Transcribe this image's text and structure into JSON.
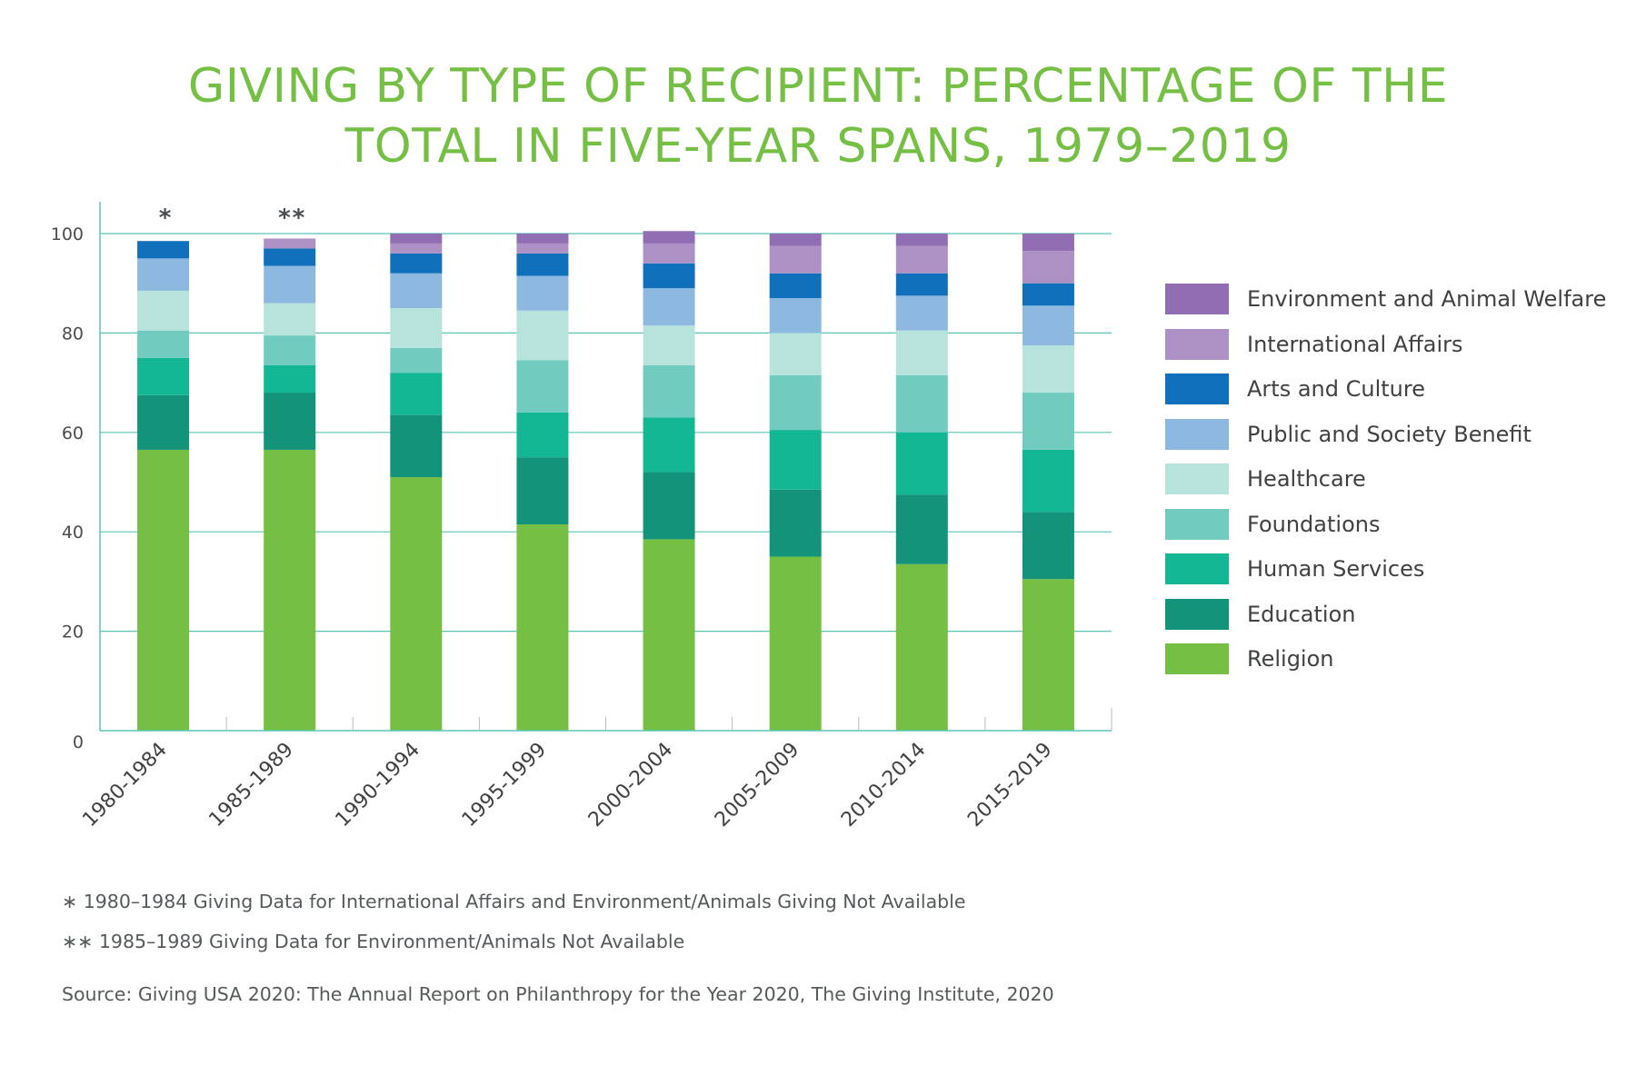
{
  "title": {
    "line1": "GIVING BY TYPE OF RECIPIENT: PERCENTAGE OF THE",
    "line2": "TOTAL IN FIVE-YEAR SPANS, 1979–2019"
  },
  "chart_data": {
    "type": "bar",
    "stacked": true,
    "categories": [
      "1980-1984",
      "1985-1989",
      "1990-1994",
      "1995-1999",
      "2000-2004",
      "2005-2009",
      "2010-2014",
      "2015-2019"
    ],
    "bar_marks": [
      "*",
      "**",
      "",
      "",
      "",
      "",
      "",
      ""
    ],
    "ylim": [
      0,
      100
    ],
    "yticks": [
      0,
      20,
      40,
      60,
      80,
      100
    ],
    "grid": true,
    "legend_position": "right",
    "series": [
      {
        "name": "Religion",
        "color": "#74bf44",
        "values": [
          56.5,
          56.5,
          51,
          41.5,
          38.5,
          35,
          33.5,
          30.5
        ]
      },
      {
        "name": "Education",
        "color": "#12937a",
        "values": [
          11,
          11.5,
          12.5,
          13.5,
          13.5,
          13.5,
          14,
          13.5
        ]
      },
      {
        "name": "Human Services",
        "color": "#14b794",
        "values": [
          7.5,
          5.5,
          8.5,
          9,
          11,
          12,
          12.5,
          12.5
        ]
      },
      {
        "name": "Foundations",
        "color": "#72cbbf",
        "values": [
          5.5,
          6,
          5,
          10.5,
          10.5,
          11,
          11.5,
          11.5
        ]
      },
      {
        "name": "Healthcare",
        "color": "#b8e3dd",
        "values": [
          8,
          6.5,
          8,
          10,
          8,
          8.5,
          9,
          9.5
        ]
      },
      {
        "name": "Public and Society Benefit",
        "color": "#8db9e0",
        "values": [
          6.5,
          7.5,
          7,
          7,
          7.5,
          7,
          7,
          8
        ]
      },
      {
        "name": "Arts and Culture",
        "color": "#1170bb",
        "values": [
          3.5,
          3.5,
          4,
          4.5,
          5,
          5,
          4.5,
          4.5
        ]
      },
      {
        "name": "International Affairs",
        "color": "#ad90c4",
        "values": [
          0,
          2,
          2,
          2,
          4,
          5.5,
          5.5,
          6.5
        ]
      },
      {
        "name": "Environment and Animal Welfare",
        "color": "#916db3",
        "values": [
          0,
          0,
          2,
          2,
          2.5,
          2.5,
          2.5,
          3.5
        ]
      }
    ]
  },
  "legend_order": [
    "Environment and Animal Welfare",
    "International Affairs",
    "Arts and Culture",
    "Public and Society Benefit",
    "Healthcare",
    "Foundations",
    "Human Services",
    "Education",
    "Religion"
  ],
  "notes": {
    "note1": "∗ 1980–1984 Giving Data for International Affairs and Environment/Animals Giving Not Available",
    "note2": "∗∗ 1985–1989 Giving Data for Environment/Animals Not Available",
    "source": "Source: Giving USA 2020: The Annual Report on Philanthropy for the Year 2020, The Giving Institute, 2020"
  },
  "colors": {
    "title": "#76bf45",
    "grid": "#5bc5b7",
    "axis_text": "#4a4d4f",
    "text": "#3f4142"
  }
}
